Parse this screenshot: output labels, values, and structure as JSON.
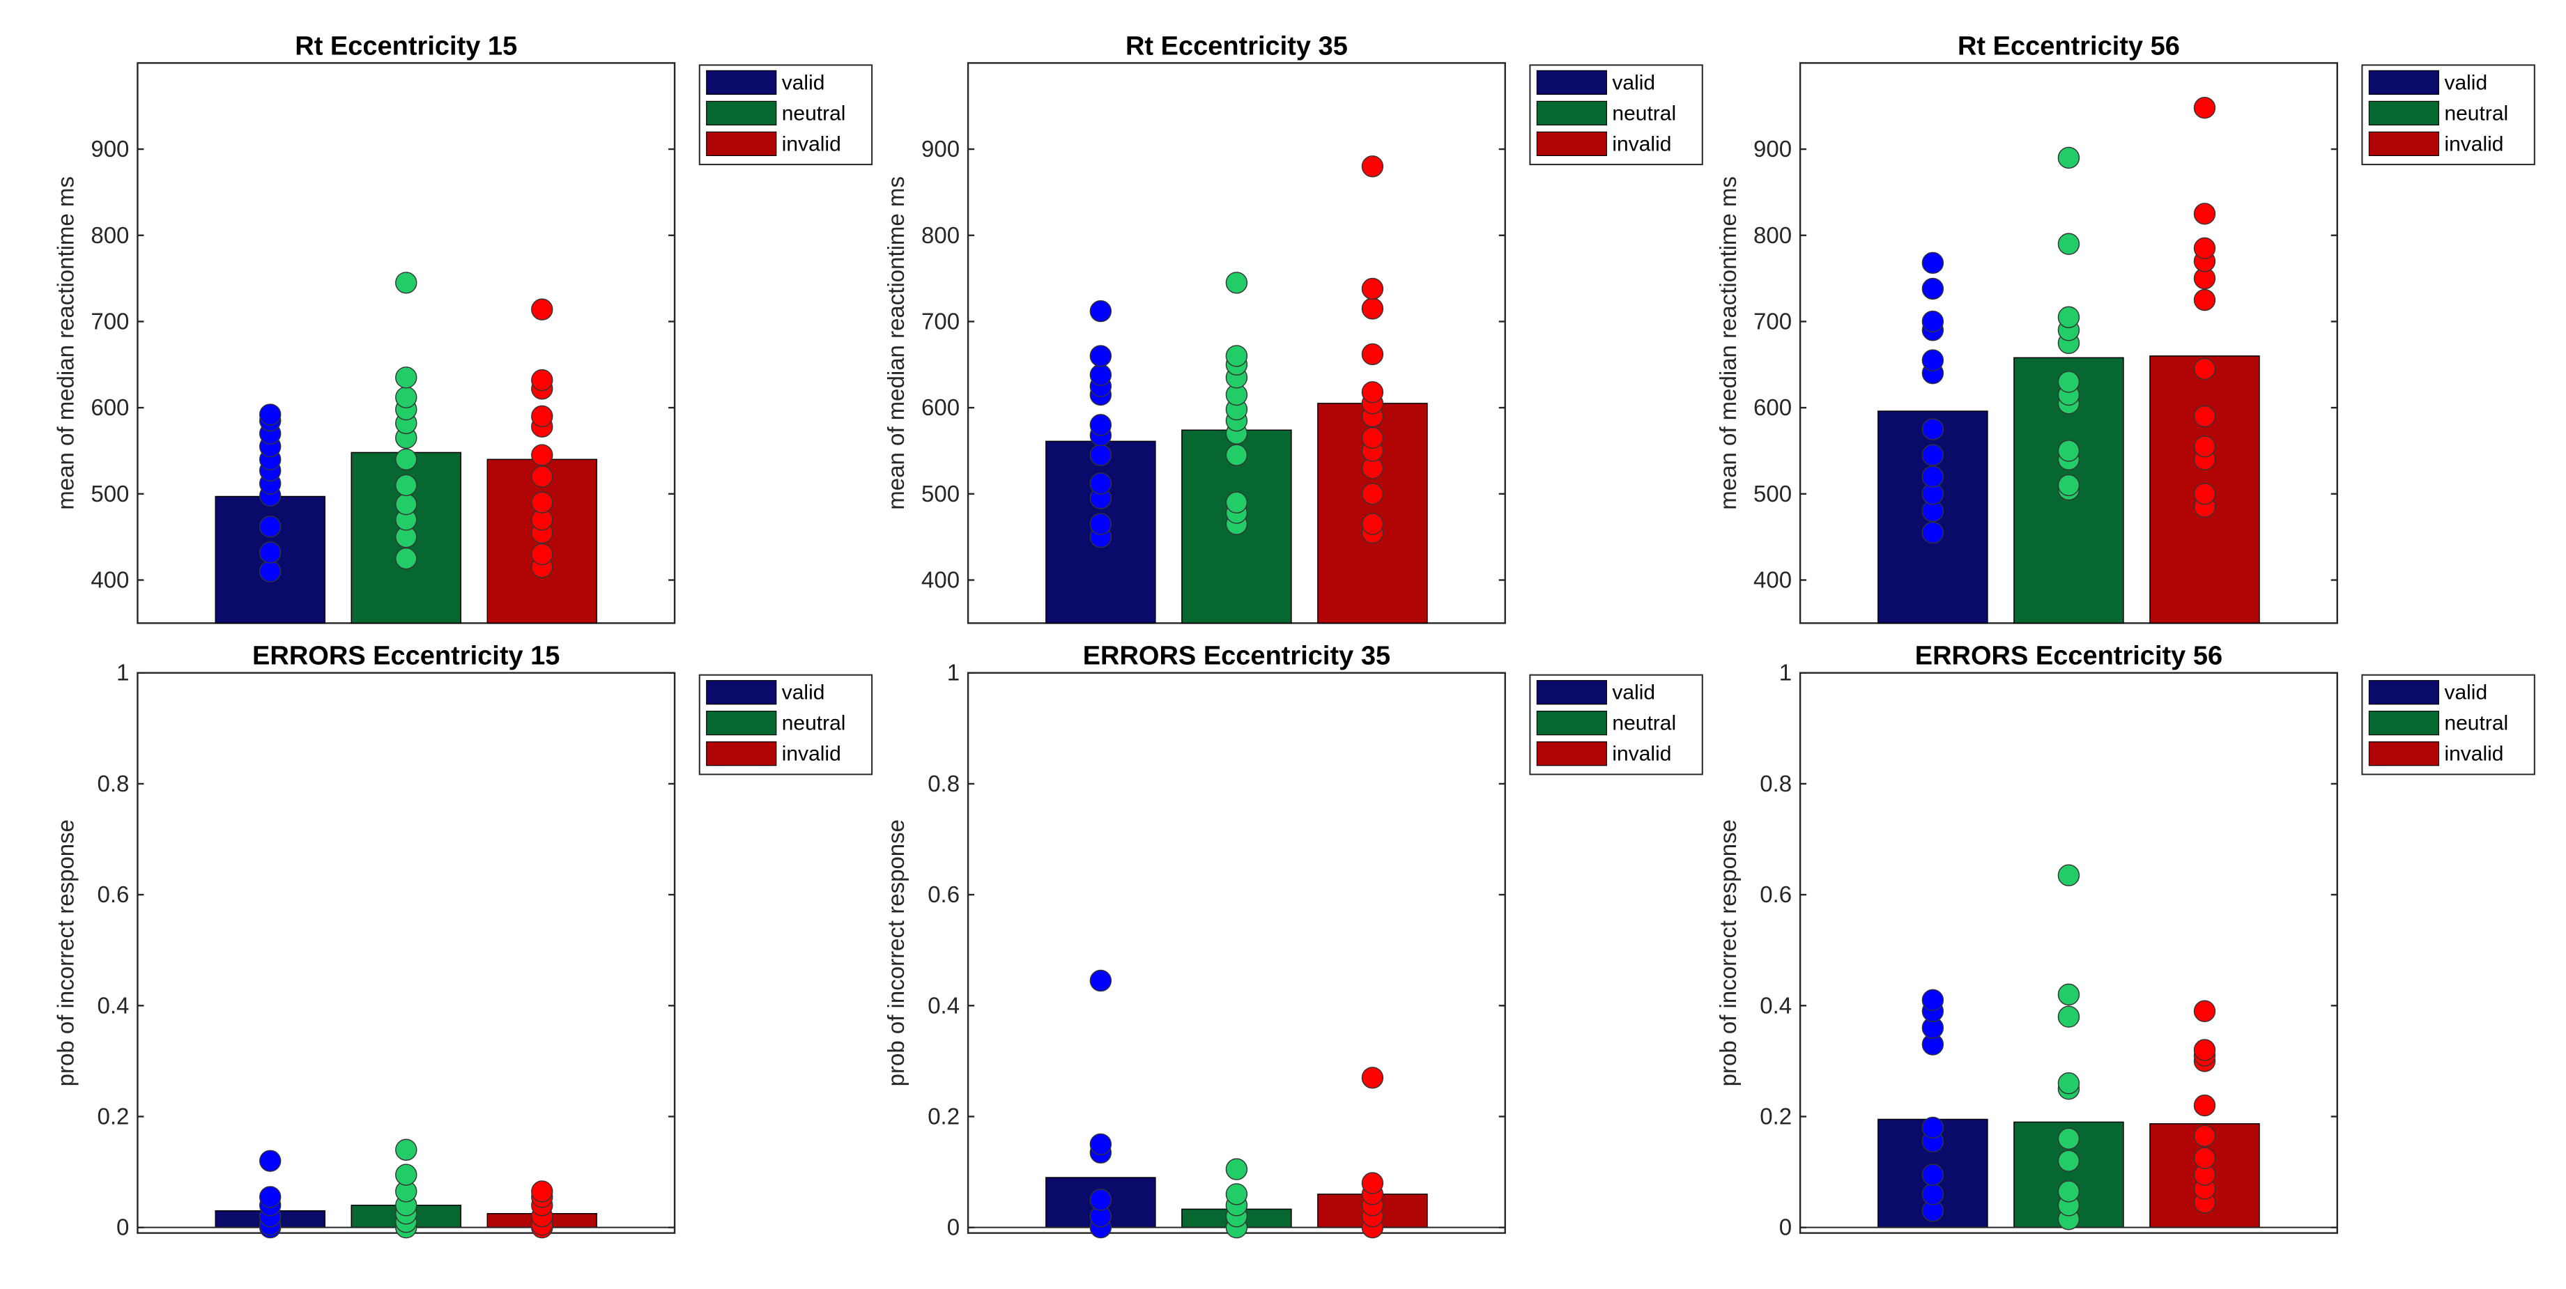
{
  "colors": {
    "valid": "#0a0a6b",
    "neutral": "#066830",
    "invalid": "#b10404",
    "valid_dot": "#0000ff",
    "neutral_dot": "#22cc66",
    "invalid_dot": "#ff0000",
    "axis": "#262626"
  },
  "legend_labels": [
    "valid",
    "neutral",
    "invalid"
  ],
  "chart_data": [
    {
      "type": "bar",
      "title": "Rt Eccentricity 15",
      "ylabel": "mean of median reactiontime ms",
      "ylim": [
        350,
        1000
      ],
      "yticks": [
        400,
        500,
        600,
        700,
        800,
        900
      ],
      "categories": [
        "valid",
        "neutral",
        "invalid"
      ],
      "values": [
        497,
        548,
        540
      ],
      "points": [
        [
          410,
          432,
          462,
          498,
          512,
          527,
          540,
          555,
          570,
          585,
          592
        ],
        [
          425,
          450,
          470,
          488,
          510,
          540,
          565,
          582,
          598,
          612,
          635,
          745
        ],
        [
          415,
          430,
          455,
          470,
          490,
          520,
          545,
          578,
          590,
          622,
          632,
          714
        ]
      ]
    },
    {
      "type": "bar",
      "title": "Rt Eccentricity 35",
      "ylabel": "mean of median reactiontime ms",
      "ylim": [
        350,
        1000
      ],
      "yticks": [
        400,
        500,
        600,
        700,
        800,
        900
      ],
      "categories": [
        "valid",
        "neutral",
        "invalid"
      ],
      "values": [
        561,
        574,
        605
      ],
      "points": [
        [
          450,
          465,
          495,
          512,
          545,
          568,
          580,
          615,
          625,
          638,
          660,
          712
        ],
        [
          465,
          478,
          490,
          545,
          570,
          585,
          598,
          615,
          635,
          650,
          660,
          745
        ],
        [
          455,
          465,
          500,
          530,
          550,
          565,
          590,
          605,
          618,
          662,
          715,
          738,
          880
        ]
      ]
    },
    {
      "type": "bar",
      "title": "Rt Eccentricity 56",
      "ylabel": "mean of median reactiontime ms",
      "ylim": [
        350,
        1000
      ],
      "yticks": [
        400,
        500,
        600,
        700,
        800,
        900
      ],
      "categories": [
        "valid",
        "neutral",
        "invalid"
      ],
      "values": [
        596,
        658,
        660
      ],
      "points": [
        [
          455,
          480,
          500,
          520,
          545,
          575,
          640,
          655,
          690,
          700,
          738,
          768
        ],
        [
          505,
          510,
          540,
          550,
          605,
          615,
          630,
          675,
          690,
          705,
          790,
          890
        ],
        [
          485,
          500,
          540,
          555,
          590,
          645,
          725,
          750,
          770,
          785,
          825,
          948
        ]
      ]
    },
    {
      "type": "bar",
      "title": "ERRORS Eccentricity 15",
      "ylabel": "prob of incorrect response",
      "ylim": [
        -0.01,
        1
      ],
      "yticks": [
        "0",
        "0.2",
        "0.4",
        "0.6",
        "0.8",
        "1"
      ],
      "categories": [
        "valid",
        "neutral",
        "invalid"
      ],
      "values": [
        0.03,
        0.04,
        0.025
      ],
      "points": [
        [
          0,
          0.005,
          0.02,
          0.04,
          0.055,
          0.12
        ],
        [
          0,
          0.01,
          0.025,
          0.04,
          0.065,
          0.095,
          0.14
        ],
        [
          0,
          0.005,
          0.02,
          0.04,
          0.055,
          0.065
        ]
      ]
    },
    {
      "type": "bar",
      "title": "ERRORS Eccentricity 35",
      "ylabel": "prob of incorrect response",
      "ylim": [
        -0.01,
        1
      ],
      "yticks": [
        "0",
        "0.2",
        "0.4",
        "0.6",
        "0.8",
        "1"
      ],
      "categories": [
        "valid",
        "neutral",
        "invalid"
      ],
      "values": [
        0.09,
        0.033,
        0.06
      ],
      "points": [
        [
          0,
          0.02,
          0.05,
          0.135,
          0.15,
          0.445
        ],
        [
          0,
          0.02,
          0.04,
          0.06,
          0.105
        ],
        [
          0,
          0.02,
          0.04,
          0.06,
          0.08,
          0.27
        ]
      ]
    },
    {
      "type": "bar",
      "title": "ERRORS Eccentricity 56",
      "ylabel": "prob of incorrect response",
      "ylim": [
        -0.01,
        1
      ],
      "yticks": [
        "0",
        "0.2",
        "0.4",
        "0.6",
        "0.8",
        "1"
      ],
      "categories": [
        "valid",
        "neutral",
        "invalid"
      ],
      "values": [
        0.195,
        0.19,
        0.187
      ],
      "points": [
        [
          0.03,
          0.06,
          0.095,
          0.155,
          0.18,
          0.33,
          0.36,
          0.39,
          0.41
        ],
        [
          0.015,
          0.04,
          0.065,
          0.12,
          0.16,
          0.25,
          0.26,
          0.38,
          0.42,
          0.635
        ],
        [
          0.045,
          0.07,
          0.095,
          0.125,
          0.165,
          0.22,
          0.3,
          0.31,
          0.32,
          0.39
        ]
      ]
    }
  ]
}
